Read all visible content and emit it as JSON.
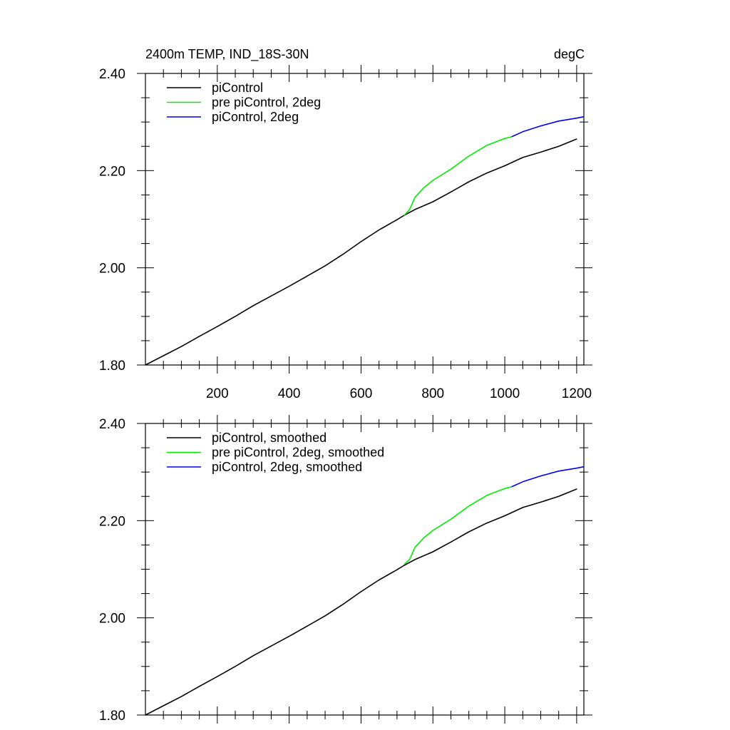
{
  "chart_data": [
    {
      "type": "line",
      "title": "2400m TEMP, IND_18S-30N",
      "units": "degC",
      "xlim": [
        0,
        1220
      ],
      "ylim": [
        1.8,
        2.4
      ],
      "x_ticks": [
        200,
        400,
        600,
        800,
        1000,
        1200
      ],
      "x_tick_labels": [
        "200",
        "400",
        "600",
        "800",
        "1000",
        "1200"
      ],
      "y_ticks": [
        1.8,
        2.0,
        2.2,
        2.4
      ],
      "y_tick_labels": [
        "1.80",
        "2.00",
        "2.20",
        "2.40"
      ],
      "legend_position": "top-left",
      "series": [
        {
          "name": "piControl",
          "color": "#000000",
          "x": [
            0,
            50,
            100,
            150,
            200,
            250,
            300,
            350,
            400,
            450,
            500,
            550,
            600,
            650,
            700,
            720,
            750,
            800,
            850,
            900,
            950,
            1000,
            1050,
            1100,
            1150,
            1200
          ],
          "y": [
            1.8,
            1.819,
            1.838,
            1.859,
            1.879,
            1.9,
            1.922,
            1.942,
            1.962,
            1.983,
            2.004,
            2.028,
            2.054,
            2.078,
            2.099,
            2.108,
            2.12,
            2.136,
            2.156,
            2.177,
            2.195,
            2.21,
            2.227,
            2.238,
            2.25,
            2.265
          ]
        },
        {
          "name": "pre piControl, 2deg",
          "color": "#00ee00",
          "x": [
            720,
            735,
            750,
            775,
            800,
            850,
            900,
            950,
            1000,
            1020
          ],
          "y": [
            2.108,
            2.12,
            2.145,
            2.165,
            2.18,
            2.203,
            2.23,
            2.252,
            2.266,
            2.27
          ]
        },
        {
          "name": "piControl, 2deg",
          "color": "#0000ee",
          "x": [
            1020,
            1050,
            1100,
            1150,
            1200,
            1220
          ],
          "y": [
            2.27,
            2.28,
            2.292,
            2.302,
            2.308,
            2.311
          ]
        }
      ]
    },
    {
      "type": "line",
      "xlim": [
        0,
        1220
      ],
      "ylim": [
        1.8,
        2.4
      ],
      "x_ticks": [
        200,
        400,
        600,
        800,
        1000,
        1200
      ],
      "y_ticks": [
        1.8,
        2.0,
        2.2,
        2.4
      ],
      "y_tick_labels": [
        "1.80",
        "2.00",
        "2.20",
        "2.40"
      ],
      "legend_position": "top-left",
      "series": [
        {
          "name": "piControl, smoothed",
          "color": "#000000",
          "x": [
            0,
            50,
            100,
            150,
            200,
            250,
            300,
            350,
            400,
            450,
            500,
            550,
            600,
            650,
            700,
            720,
            750,
            800,
            850,
            900,
            950,
            1000,
            1050,
            1100,
            1150,
            1200
          ],
          "y": [
            1.8,
            1.819,
            1.838,
            1.859,
            1.879,
            1.9,
            1.922,
            1.942,
            1.962,
            1.983,
            2.004,
            2.028,
            2.054,
            2.078,
            2.099,
            2.108,
            2.12,
            2.136,
            2.156,
            2.177,
            2.195,
            2.21,
            2.227,
            2.238,
            2.25,
            2.265
          ]
        },
        {
          "name": "pre piControl, 2deg, smoothed",
          "color": "#00ee00",
          "x": [
            720,
            735,
            750,
            775,
            800,
            850,
            900,
            950,
            1000,
            1020
          ],
          "y": [
            2.11,
            2.12,
            2.145,
            2.165,
            2.18,
            2.203,
            2.23,
            2.252,
            2.266,
            2.27
          ]
        },
        {
          "name": "piControl, 2deg, smoothed",
          "color": "#0000ee",
          "x": [
            1020,
            1050,
            1100,
            1150,
            1200,
            1220
          ],
          "y": [
            2.27,
            2.28,
            2.292,
            2.302,
            2.308,
            2.311
          ]
        }
      ]
    }
  ]
}
